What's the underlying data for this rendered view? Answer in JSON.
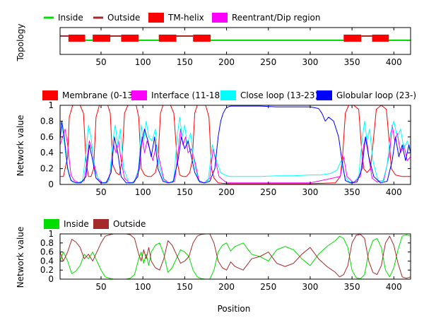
{
  "figure": {
    "xlabel": "Position"
  },
  "chart_data": [
    {
      "type": "line",
      "name": "topology",
      "ylabel": "Topology",
      "xlim": [
        1,
        420
      ],
      "x_ticks": [
        50,
        100,
        150,
        200,
        250,
        300,
        350,
        400
      ],
      "legend": [
        "Inside",
        "Outside",
        "TM-helix",
        "Reentrant/Dip region"
      ],
      "legend_colors": [
        "#00dd00",
        "#a52a2a",
        "#ff0000",
        "#ff00ff"
      ],
      "inside_color": "#00dd00",
      "outside_color": "#a52a2a",
      "tm_color": "#ff0000",
      "segments": [
        {
          "state": "Outside",
          "start": 1,
          "end": 11
        },
        {
          "state": "TM",
          "start": 11,
          "end": 31
        },
        {
          "state": "Inside",
          "start": 31,
          "end": 40
        },
        {
          "state": "TM",
          "start": 40,
          "end": 61
        },
        {
          "state": "Outside",
          "start": 61,
          "end": 74
        },
        {
          "state": "TM",
          "start": 74,
          "end": 95
        },
        {
          "state": "Inside",
          "start": 95,
          "end": 119
        },
        {
          "state": "TM",
          "start": 119,
          "end": 140
        },
        {
          "state": "Outside",
          "start": 140,
          "end": 160
        },
        {
          "state": "TM",
          "start": 160,
          "end": 181
        },
        {
          "state": "Inside",
          "start": 181,
          "end": 340
        },
        {
          "state": "TM",
          "start": 340,
          "end": 361
        },
        {
          "state": "Outside",
          "start": 361,
          "end": 374
        },
        {
          "state": "TM",
          "start": 374,
          "end": 394
        },
        {
          "state": "Inside",
          "start": 394,
          "end": 420
        }
      ]
    },
    {
      "type": "line",
      "name": "network-values",
      "ylabel": "Network value",
      "xlim": [
        1,
        420
      ],
      "ylim": [
        0,
        1
      ],
      "x_ticks": [
        50,
        100,
        150,
        200,
        250,
        300,
        350,
        400
      ],
      "y_ticks": [
        "0",
        "0.2",
        "0.4",
        "0.6",
        "0.8",
        "1"
      ],
      "series": [
        {
          "name": "Membrane (0-13)",
          "color": "#ff0000",
          "x": [
            1,
            5,
            10,
            12,
            16,
            20,
            25,
            29,
            32,
            35,
            38,
            41,
            44,
            48,
            53,
            58,
            61,
            64,
            68,
            72,
            75,
            78,
            82,
            87,
            92,
            95,
            98,
            102,
            106,
            110,
            115,
            118,
            121,
            124,
            128,
            133,
            137,
            141,
            144,
            148,
            152,
            156,
            159,
            162,
            165,
            170,
            175,
            179,
            182,
            185,
            190,
            200,
            250,
            300,
            330,
            336,
            339,
            342,
            346,
            352,
            358,
            361,
            364,
            368,
            372,
            375,
            379,
            385,
            391,
            394,
            397,
            402,
            410,
            420
          ],
          "values": [
            0.1,
            0.1,
            0.35,
            0.85,
            1.0,
            1.0,
            1.0,
            0.9,
            0.3,
            0.1,
            0.1,
            0.2,
            0.85,
            1.0,
            1.0,
            1.0,
            0.9,
            0.25,
            0.15,
            0.12,
            0.3,
            0.9,
            1.0,
            1.0,
            1.0,
            0.85,
            0.2,
            0.12,
            0.1,
            0.1,
            0.15,
            0.3,
            0.9,
            1.0,
            1.0,
            1.0,
            0.9,
            0.3,
            0.12,
            0.1,
            0.1,
            0.15,
            0.3,
            0.9,
            1.0,
            1.0,
            1.0,
            0.85,
            0.2,
            0.08,
            0.02,
            0.01,
            0.01,
            0.01,
            0.02,
            0.1,
            0.4,
            0.9,
            1.0,
            1.0,
            0.95,
            0.5,
            0.2,
            0.15,
            0.2,
            0.5,
            0.95,
            1.0,
            0.95,
            0.6,
            0.2,
            0.12,
            0.1,
            0.1
          ]
        },
        {
          "name": "Interface (11-18)",
          "color": "#ff00ff",
          "x": [
            1,
            4,
            7,
            10,
            14,
            18,
            24,
            30,
            33,
            36,
            39,
            42,
            46,
            52,
            58,
            62,
            65,
            68,
            71,
            74,
            78,
            84,
            90,
            96,
            99,
            102,
            105,
            108,
            112,
            116,
            120,
            125,
            131,
            138,
            142,
            145,
            148,
            151,
            154,
            158,
            162,
            167,
            173,
            180,
            184,
            187,
            191,
            200,
            250,
            300,
            336,
            340,
            344,
            352,
            360,
            364,
            367,
            370,
            374,
            380,
            388,
            395,
            398,
            401,
            404,
            408,
            412,
            416,
            420
          ],
          "values": [
            0.5,
            0.6,
            0.7,
            0.5,
            0.12,
            0.05,
            0.02,
            0.05,
            0.3,
            0.55,
            0.45,
            0.25,
            0.08,
            0.02,
            0.03,
            0.2,
            0.5,
            0.4,
            0.55,
            0.3,
            0.08,
            0.02,
            0.03,
            0.2,
            0.6,
            0.4,
            0.55,
            0.45,
            0.3,
            0.5,
            0.3,
            0.07,
            0.02,
            0.04,
            0.4,
            0.7,
            0.5,
            0.6,
            0.4,
            0.45,
            0.3,
            0.05,
            0.02,
            0.08,
            0.45,
            0.3,
            0.1,
            0.02,
            0.02,
            0.02,
            0.1,
            0.35,
            0.1,
            0.02,
            0.1,
            0.5,
            0.6,
            0.35,
            0.08,
            0.03,
            0.05,
            0.4,
            0.75,
            0.55,
            0.65,
            0.4,
            0.5,
            0.3,
            0.35
          ]
        },
        {
          "name": "Close loop (13-23)",
          "color": "#00ffff",
          "x": [
            1,
            4,
            8,
            12,
            16,
            22,
            28,
            32,
            35,
            38,
            42,
            48,
            54,
            60,
            64,
            67,
            70,
            73,
            77,
            83,
            89,
            95,
            98,
            101,
            104,
            107,
            111,
            115,
            119,
            125,
            131,
            137,
            141,
            144,
            147,
            150,
            153,
            157,
            161,
            166,
            172,
            178,
            183,
            188,
            193,
            198,
            203,
            210,
            220,
            240,
            260,
            280,
            300,
            312,
            320,
            325,
            332,
            337,
            341,
            346,
            352,
            358,
            362,
            365,
            368,
            371,
            375,
            381,
            387,
            392,
            396,
            400,
            404,
            408,
            412,
            416,
            420
          ],
          "values": [
            0.8,
            0.7,
            0.35,
            0.1,
            0.03,
            0.02,
            0.05,
            0.4,
            0.75,
            0.6,
            0.2,
            0.03,
            0.02,
            0.06,
            0.55,
            0.75,
            0.5,
            0.7,
            0.2,
            0.03,
            0.02,
            0.2,
            0.75,
            0.55,
            0.8,
            0.6,
            0.55,
            0.7,
            0.25,
            0.05,
            0.02,
            0.05,
            0.6,
            0.85,
            0.6,
            0.75,
            0.5,
            0.65,
            0.3,
            0.05,
            0.02,
            0.05,
            0.5,
            0.3,
            0.15,
            0.12,
            0.1,
            0.1,
            0.1,
            0.1,
            0.11,
            0.11,
            0.12,
            0.12,
            0.13,
            0.14,
            0.18,
            0.3,
            0.12,
            0.04,
            0.03,
            0.1,
            0.55,
            0.8,
            0.55,
            0.7,
            0.3,
            0.05,
            0.04,
            0.25,
            0.65,
            0.8,
            0.6,
            0.7,
            0.45,
            0.55,
            0.4
          ]
        },
        {
          "name": "Globular loop (23-)",
          "color": "#0000ff",
          "x": [
            1,
            3,
            6,
            10,
            14,
            20,
            26,
            32,
            36,
            40,
            44,
            50,
            56,
            62,
            66,
            70,
            74,
            80,
            88,
            94,
            98,
            102,
            106,
            110,
            114,
            118,
            124,
            130,
            136,
            142,
            146,
            150,
            154,
            158,
            162,
            168,
            174,
            180,
            186,
            190,
            193,
            196,
            199,
            202,
            205,
            210,
            220,
            240,
            260,
            280,
            300,
            310,
            314,
            318,
            322,
            328,
            334,
            338,
            342,
            348,
            356,
            362,
            366,
            370,
            376,
            384,
            392,
            398,
            402,
            406,
            410,
            414,
            418,
            420
          ],
          "values": [
            0.55,
            0.8,
            0.6,
            0.2,
            0.05,
            0.02,
            0.02,
            0.1,
            0.5,
            0.3,
            0.08,
            0.02,
            0.02,
            0.15,
            0.6,
            0.4,
            0.1,
            0.02,
            0.02,
            0.1,
            0.5,
            0.7,
            0.55,
            0.35,
            0.6,
            0.2,
            0.04,
            0.02,
            0.03,
            0.3,
            0.6,
            0.45,
            0.55,
            0.35,
            0.15,
            0.03,
            0.02,
            0.04,
            0.2,
            0.6,
            0.8,
            0.9,
            0.96,
            0.98,
            0.99,
            0.99,
            0.99,
            0.99,
            0.98,
            0.98,
            0.98,
            0.96,
            0.9,
            0.8,
            0.85,
            0.8,
            0.6,
            0.3,
            0.05,
            0.02,
            0.03,
            0.2,
            0.6,
            0.35,
            0.1,
            0.02,
            0.04,
            0.3,
            0.6,
            0.35,
            0.5,
            0.3,
            0.5,
            0.4
          ]
        }
      ]
    },
    {
      "type": "line",
      "name": "inside-outside",
      "ylabel": "Network value",
      "xlim": [
        1,
        420
      ],
      "ylim": [
        0,
        1
      ],
      "x_ticks": [
        50,
        100,
        150,
        200,
        250,
        300,
        350,
        400
      ],
      "y_ticks": [
        "0",
        "0.2",
        "0.4",
        "0.6",
        "0.8",
        "1"
      ],
      "series": [
        {
          "name": "Inside",
          "color": "#00dd00",
          "x": [
            1,
            5,
            10,
            15,
            20,
            25,
            30,
            35,
            40,
            45,
            50,
            55,
            60,
            65,
            70,
            75,
            80,
            85,
            90,
            95,
            98,
            101,
            104,
            107,
            110,
            115,
            120,
            125,
            130,
            135,
            140,
            145,
            150,
            155,
            160,
            165,
            170,
            175,
            180,
            185,
            190,
            195,
            200,
            205,
            210,
            220,
            230,
            240,
            250,
            260,
            270,
            280,
            290,
            300,
            310,
            320,
            330,
            335,
            340,
            345,
            350,
            355,
            360,
            365,
            370,
            375,
            380,
            385,
            390,
            395,
            400,
            405,
            410,
            415,
            420
          ],
          "values": [
            0.4,
            0.6,
            0.4,
            0.12,
            0.18,
            0.3,
            0.55,
            0.45,
            0.6,
            0.4,
            0.2,
            0.05,
            0.02,
            0.0,
            0.0,
            0.0,
            0.0,
            0.02,
            0.1,
            0.45,
            0.6,
            0.35,
            0.55,
            0.3,
            0.6,
            0.75,
            0.8,
            0.55,
            0.15,
            0.25,
            0.45,
            0.65,
            0.6,
            0.5,
            0.2,
            0.05,
            0.01,
            0.0,
            0.0,
            0.2,
            0.6,
            0.75,
            0.8,
            0.62,
            0.72,
            0.8,
            0.55,
            0.5,
            0.4,
            0.65,
            0.72,
            0.65,
            0.45,
            0.3,
            0.55,
            0.72,
            0.85,
            0.95,
            0.9,
            0.7,
            0.2,
            0.03,
            0.01,
            0.1,
            0.6,
            0.85,
            0.9,
            0.7,
            0.2,
            0.05,
            0.25,
            0.65,
            0.95,
            0.98,
            0.95
          ]
        },
        {
          "name": "Outside",
          "color": "#a52a2a",
          "x": [
            1,
            5,
            10,
            15,
            20,
            25,
            30,
            35,
            40,
            45,
            50,
            55,
            60,
            65,
            70,
            75,
            80,
            85,
            90,
            95,
            98,
            101,
            104,
            107,
            110,
            115,
            120,
            125,
            130,
            135,
            140,
            145,
            150,
            155,
            160,
            165,
            170,
            175,
            180,
            185,
            190,
            195,
            200,
            205,
            210,
            220,
            230,
            240,
            250,
            260,
            270,
            280,
            290,
            300,
            310,
            320,
            330,
            335,
            340,
            345,
            350,
            355,
            360,
            365,
            370,
            375,
            380,
            385,
            390,
            395,
            400,
            405,
            410,
            415,
            420
          ],
          "values": [
            0.6,
            0.4,
            0.6,
            0.88,
            0.82,
            0.7,
            0.45,
            0.55,
            0.4,
            0.6,
            0.8,
            0.95,
            0.98,
            1.0,
            1.0,
            1.0,
            1.0,
            0.98,
            0.9,
            0.55,
            0.4,
            0.65,
            0.45,
            0.7,
            0.4,
            0.25,
            0.2,
            0.45,
            0.85,
            0.75,
            0.55,
            0.35,
            0.4,
            0.5,
            0.8,
            0.95,
            0.99,
            1.0,
            1.0,
            0.8,
            0.4,
            0.25,
            0.2,
            0.38,
            0.28,
            0.2,
            0.45,
            0.5,
            0.6,
            0.35,
            0.28,
            0.35,
            0.55,
            0.7,
            0.45,
            0.28,
            0.15,
            0.05,
            0.1,
            0.3,
            0.8,
            0.97,
            0.99,
            0.9,
            0.4,
            0.15,
            0.1,
            0.3,
            0.8,
            0.95,
            0.75,
            0.35,
            0.05,
            0.02,
            0.05
          ]
        }
      ]
    }
  ]
}
